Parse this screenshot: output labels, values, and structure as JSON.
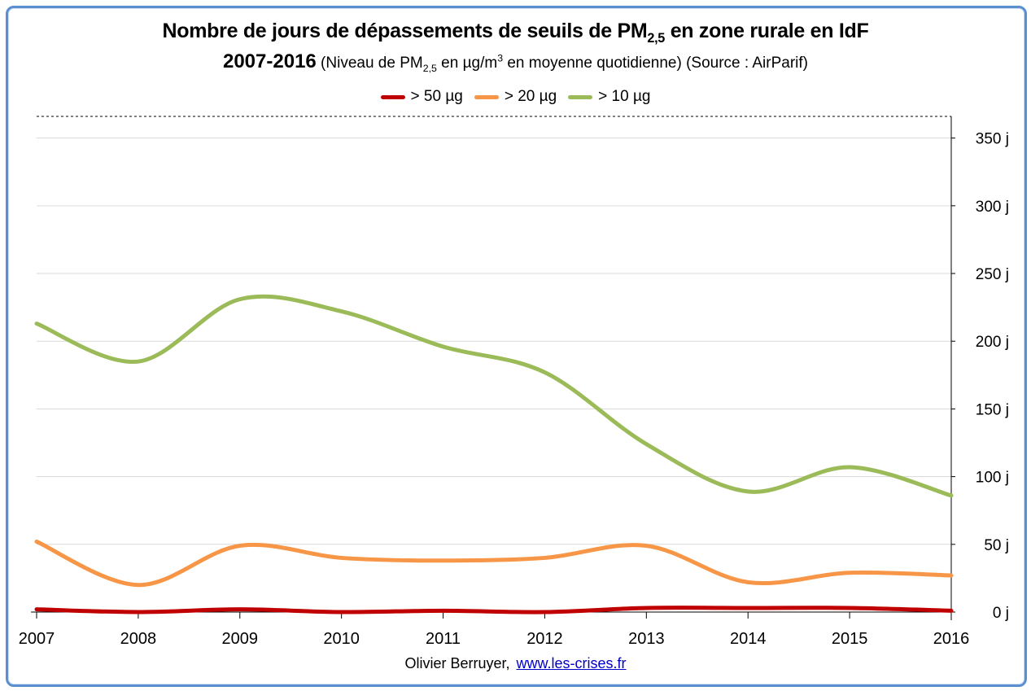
{
  "chart_data": {
    "type": "line",
    "title_main": "Nombre de jours de dépassements de seuils de PM",
    "title_main_sub": "2,5",
    "title_main_suffix": " en zone rurale en IdF",
    "title_years": "2007-2016",
    "title_detail_a": " (Niveau de PM",
    "title_detail_sub": "2,5",
    "title_detail_b": " en µg/m",
    "title_detail_sup": "3",
    "title_detail_c": "  en moyenne quotidienne) (Source : AirParif)",
    "x": [
      "2007",
      "2008",
      "2009",
      "2010",
      "2011",
      "2012",
      "2013",
      "2014",
      "2015",
      "2016"
    ],
    "series": [
      {
        "name": "> 50 µg",
        "color": "#c00000",
        "values": [
          2,
          0,
          2,
          0,
          1,
          0,
          3,
          3,
          3,
          1
        ]
      },
      {
        "name": "> 20 µg",
        "color": "#f79646",
        "values": [
          52,
          20,
          49,
          40,
          38,
          40,
          49,
          22,
          29,
          27
        ]
      },
      {
        "name": "> 10 µg",
        "color": "#9bbb59",
        "values": [
          213,
          185,
          231,
          222,
          196,
          177,
          124,
          89,
          107,
          86
        ]
      }
    ],
    "y_ticks": [
      "0 j",
      "50 j",
      "100 j",
      "150 j",
      "200 j",
      "250 j",
      "300 j",
      "350 j"
    ],
    "ylim": [
      0,
      366
    ],
    "y_axis_side": "right",
    "grid": true,
    "legend_position": "top"
  },
  "footer": {
    "author": "Olivier Berruyer,",
    "link": "www.les-crises.fr"
  }
}
